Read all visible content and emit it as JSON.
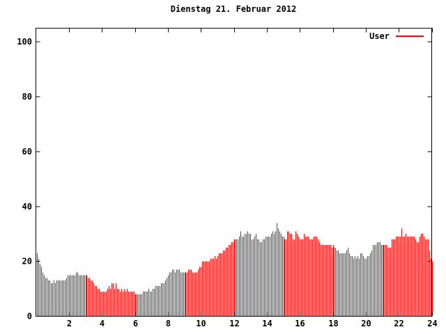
{
  "chart": {
    "title": "Dienstag 21. Februar 2012",
    "legend_label": "User",
    "colors": {
      "series": "#ff0000",
      "axis": "#000000",
      "background": "#ffffff",
      "text": "#000000"
    }
  },
  "chart_data": {
    "type": "bar",
    "style": "impulses",
    "title": "Dienstag 21. Februar 2012",
    "series_name": "User",
    "xlabel": "",
    "ylabel": "",
    "x_unit": "hour_of_day",
    "interval_minutes": 5,
    "xlim": [
      0,
      24
    ],
    "ylim": [
      0,
      105
    ],
    "x_ticks": [
      2,
      4,
      6,
      8,
      10,
      12,
      14,
      16,
      18,
      20,
      22,
      24
    ],
    "y_ticks": [
      0,
      20,
      40,
      60,
      80,
      100
    ],
    "grid": false,
    "legend_position": "top-right",
    "values": [
      23,
      21,
      19,
      18,
      16,
      15,
      14,
      14,
      13,
      13,
      12,
      12,
      13,
      12,
      13,
      13,
      13,
      13,
      13,
      13,
      13,
      14,
      15,
      15,
      15,
      15,
      15,
      15,
      16,
      16,
      15,
      15,
      15,
      15,
      15,
      15,
      15,
      14,
      14,
      13,
      13,
      12,
      11,
      11,
      10,
      10,
      9,
      9,
      9,
      9,
      9,
      10,
      11,
      10,
      12,
      12,
      10,
      12,
      10,
      10,
      9,
      10,
      9,
      10,
      9,
      10,
      9,
      9,
      9,
      9,
      9,
      8,
      8,
      8,
      8,
      8,
      8,
      9,
      9,
      9,
      9,
      10,
      9,
      9,
      10,
      10,
      11,
      11,
      11,
      11,
      12,
      12,
      12,
      13,
      14,
      15,
      16,
      16,
      17,
      17,
      16,
      17,
      17,
      17,
      16,
      16,
      16,
      16,
      16,
      16,
      17,
      17,
      17,
      16,
      16,
      16,
      16,
      17,
      18,
      18,
      20,
      20,
      20,
      20,
      20,
      20,
      21,
      21,
      21,
      22,
      21,
      22,
      23,
      23,
      23,
      24,
      24,
      25,
      25,
      26,
      26,
      27,
      27,
      28,
      28,
      28,
      28,
      29,
      31,
      29,
      29,
      30,
      30,
      31,
      30,
      30,
      28,
      28,
      29,
      30,
      28,
      28,
      27,
      27,
      28,
      28,
      29,
      29,
      29,
      29,
      30,
      31,
      30,
      31,
      34,
      32,
      31,
      30,
      29,
      29,
      28,
      28,
      31,
      31,
      30,
      30,
      28,
      28,
      31,
      30,
      29,
      28,
      28,
      28,
      30,
      29,
      29,
      29,
      28,
      28,
      28,
      29,
      29,
      29,
      28,
      27,
      26,
      26,
      26,
      26,
      26,
      26,
      26,
      26,
      25,
      26,
      25,
      25,
      24,
      24,
      23,
      23,
      23,
      23,
      23,
      24,
      25,
      23,
      22,
      22,
      21,
      22,
      21,
      22,
      21,
      23,
      23,
      22,
      21,
      21,
      22,
      22,
      23,
      24,
      26,
      26,
      26,
      27,
      27,
      27,
      26,
      26,
      26,
      26,
      26,
      25,
      25,
      25,
      28,
      28,
      28,
      29,
      29,
      29,
      29,
      32,
      29,
      29,
      30,
      29,
      29,
      29,
      29,
      29,
      29,
      28,
      27,
      27,
      29,
      30,
      30,
      29,
      28,
      28,
      28,
      24,
      21,
      20
    ]
  }
}
